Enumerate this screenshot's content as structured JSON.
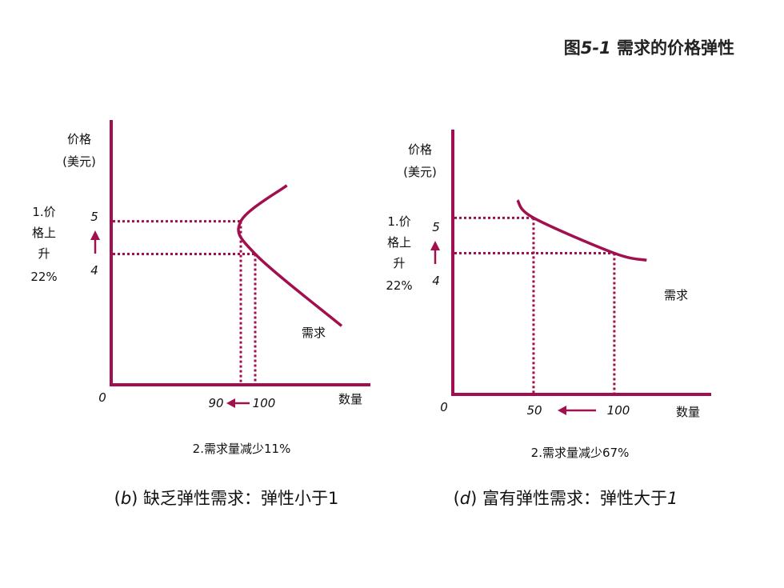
{
  "figure_title_prefix": "图",
  "figure_title_num": "5-1",
  "figure_title_text": " 需求的价格弹性",
  "colors": {
    "accent": "#a0104e",
    "axis": "#a0104e"
  },
  "chart_data": [
    {
      "type": "line",
      "ylabel": [
        "价格",
        "(美元)"
      ],
      "xlabel": "数量",
      "origin_label": "0",
      "xlim": [
        0,
        180
      ],
      "ylim": [
        0,
        8.1
      ],
      "curve": {
        "name": "需求",
        "x": [
          122,
          90,
          100,
          160
        ],
        "y": [
          6.1,
          5,
          4,
          1.8
        ]
      },
      "y_ticks": [
        "5",
        "4"
      ],
      "x_ticks": [
        "90",
        "100"
      ],
      "price_change": [
        "1.价",
        "格上",
        "升",
        "22%"
      ],
      "qty_change": "2.需求量减少11%",
      "caption_pre": "(",
      "caption_letter": "b",
      "caption_post": ") 缺乏弹性需求：弹性小于1"
    },
    {
      "type": "line",
      "ylabel": [
        "价格",
        "(美元)"
      ],
      "xlabel": "数量",
      "origin_label": "0",
      "xlim": [
        0,
        160
      ],
      "ylim": [
        0,
        7.5
      ],
      "curve": {
        "name": "需求",
        "x": [
          40,
          50,
          100,
          120
        ],
        "y": [
          5.5,
          5,
          4,
          3.8
        ]
      },
      "y_ticks": [
        "5",
        "4"
      ],
      "x_ticks": [
        "50",
        "100"
      ],
      "price_change": [
        "1.价",
        "格上",
        "升",
        "22%"
      ],
      "qty_change": "2.需求量减少67%",
      "caption_pre": "(",
      "caption_letter": "d",
      "caption_post": ") 富有弹性需求：弹性大于",
      "caption_end": "1"
    }
  ]
}
